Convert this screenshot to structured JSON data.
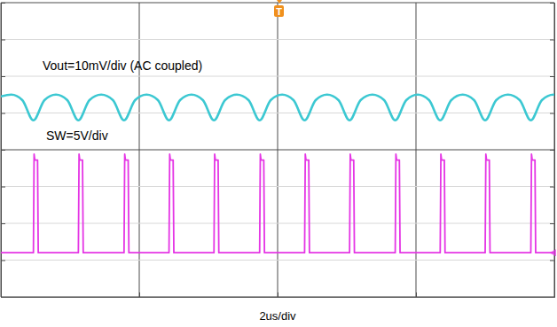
{
  "chart_data": {
    "type": "line",
    "x_label": "2us/div",
    "annotations": [
      "T"
    ],
    "xlim": [
      0,
      8
    ],
    "xticks": [
      0,
      2,
      4,
      6,
      8
    ],
    "ylim": [
      -6,
      34
    ],
    "yticks": [
      -6,
      -1,
      4,
      9,
      14,
      19,
      24,
      29,
      34
    ],
    "y2lim": [
      -50,
      30
    ],
    "y2ticks": [
      -50,
      -40,
      -30,
      -20,
      -10,
      0,
      10,
      20,
      30
    ],
    "grid": true,
    "tick_labels": false,
    "series": [
      {
        "name": "Vout=10mV/div (AC coupled)",
        "color": "#3cc8d2",
        "axis": "y2",
        "x": [
          0,
          0.15,
          0.31,
          0.47,
          0.63,
          0.795,
          0.96,
          1.12,
          1.28,
          1.45,
          1.62,
          1.78,
          1.94,
          2.105,
          2.27,
          2.43,
          2.59,
          2.755,
          2.92,
          3.08,
          3.24,
          3.41,
          3.58,
          3.74,
          3.9,
          4.065,
          4.23,
          4.39,
          4.55,
          4.715,
          4.88,
          5.04,
          5.2,
          5.37,
          5.54,
          5.7,
          5.86,
          6.025,
          6.19,
          6.35,
          6.51,
          6.675,
          6.84,
          7.0,
          7.16,
          7.33,
          7.5,
          7.66,
          7.82,
          7.99,
          8.0
        ],
        "values": [
          4.5,
          5,
          3.5,
          -2,
          3.5,
          5,
          3.5,
          -2,
          3.5,
          5,
          3.5,
          -2,
          3.5,
          5,
          3.5,
          -2,
          3.5,
          5,
          3.5,
          -2,
          3.5,
          5,
          3.5,
          -2,
          3.5,
          5,
          3.5,
          -2,
          3.5,
          5,
          3.5,
          -2,
          3.5,
          5,
          3.5,
          -2,
          3.5,
          5,
          3.5,
          -2,
          3.5,
          5,
          3.5,
          -2,
          3.5,
          5,
          3.5,
          -2,
          3.5,
          5,
          5
        ]
      },
      {
        "name": "SW=5V/div",
        "color": "#e535e5",
        "axis": "y",
        "x": [
          0,
          0.47,
          0.48,
          0.49,
          0.53,
          0.54,
          1.12,
          1.13,
          1.14,
          1.18,
          1.19,
          1.78,
          1.79,
          1.8,
          1.84,
          1.85,
          2.43,
          2.44,
          2.45,
          2.49,
          2.5,
          3.08,
          3.09,
          3.1,
          3.14,
          3.15,
          3.74,
          3.75,
          3.76,
          3.8,
          3.81,
          4.39,
          4.4,
          4.41,
          4.45,
          4.46,
          5.04,
          5.05,
          5.06,
          5.1,
          5.11,
          5.7,
          5.71,
          5.72,
          5.76,
          5.77,
          6.35,
          6.36,
          6.37,
          6.41,
          6.42,
          7.0,
          7.01,
          7.02,
          7.06,
          7.07,
          7.66,
          7.67,
          7.68,
          7.72,
          7.73,
          8.0
        ],
        "values": [
          0,
          0,
          13.4,
          12.6,
          12.6,
          0,
          0,
          13.4,
          12.6,
          12.6,
          0,
          0,
          13.4,
          12.6,
          12.6,
          0,
          0,
          13.4,
          12.6,
          12.6,
          0,
          0,
          13.4,
          12.6,
          12.6,
          0,
          0,
          13.4,
          12.6,
          12.6,
          0,
          0,
          13.4,
          12.6,
          12.6,
          0,
          0,
          13.4,
          12.6,
          12.6,
          0,
          0,
          13.4,
          12.6,
          12.6,
          0,
          0,
          13.4,
          12.6,
          12.6,
          0,
          0,
          13.4,
          12.6,
          12.6,
          0,
          0,
          13.4,
          12.6,
          12.6,
          0,
          0
        ]
      }
    ]
  }
}
